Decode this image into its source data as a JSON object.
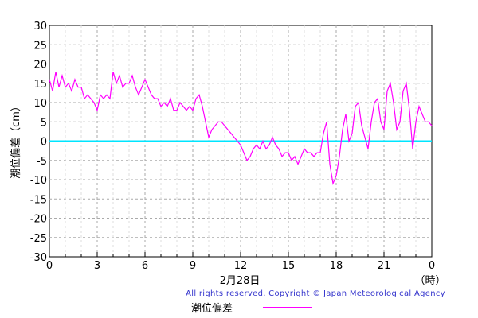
{
  "chart_data": {
    "type": "line",
    "ylabel": "潮位偏差（cm）",
    "xlabel": "2月28日",
    "x_unit_label": "（時）",
    "ylim": [
      -30,
      30
    ],
    "y_ticks": [
      30,
      25,
      20,
      15,
      10,
      5,
      0,
      -5,
      -10,
      -15,
      -20,
      -25,
      -30
    ],
    "x_ticks": [
      {
        "hour": 0,
        "label": "0"
      },
      {
        "hour": 3,
        "label": "3"
      },
      {
        "hour": 6,
        "label": "6"
      },
      {
        "hour": 9,
        "label": "9"
      },
      {
        "hour": 12,
        "label": "12"
      },
      {
        "hour": 15,
        "label": "15"
      },
      {
        "hour": 18,
        "label": "18"
      },
      {
        "hour": 21,
        "label": "21"
      },
      {
        "hour": 24,
        "label": "0"
      }
    ],
    "xlim": [
      0,
      24
    ],
    "grid": true,
    "zero_line": {
      "value": 0,
      "color": "#00e5ff"
    },
    "legend_position": "bottom-center",
    "series": [
      {
        "name": "潮位偏差",
        "color": "#ff00ff",
        "x": [
          0.0,
          0.2,
          0.4,
          0.6,
          0.8,
          1.0,
          1.2,
          1.4,
          1.6,
          1.8,
          2.0,
          2.2,
          2.4,
          2.6,
          2.8,
          3.0,
          3.2,
          3.4,
          3.6,
          3.8,
          4.0,
          4.2,
          4.4,
          4.6,
          4.8,
          5.0,
          5.2,
          5.4,
          5.6,
          5.8,
          6.0,
          6.2,
          6.4,
          6.6,
          6.8,
          7.0,
          7.2,
          7.4,
          7.6,
          7.8,
          8.0,
          8.2,
          8.4,
          8.6,
          8.8,
          9.0,
          9.2,
          9.4,
          9.6,
          9.8,
          10.0,
          10.2,
          10.4,
          10.6,
          10.8,
          11.0,
          11.2,
          11.4,
          11.6,
          11.8,
          12.0,
          12.2,
          12.4,
          12.6,
          12.8,
          13.0,
          13.2,
          13.4,
          13.6,
          13.8,
          14.0,
          14.2,
          14.4,
          14.6,
          14.8,
          15.0,
          15.2,
          15.4,
          15.6,
          15.8,
          16.0,
          16.2,
          16.4,
          16.6,
          16.8,
          17.0,
          17.2,
          17.4,
          17.6,
          17.8,
          18.0,
          18.2,
          18.4,
          18.6,
          18.8,
          19.0,
          19.2,
          19.4,
          19.6,
          19.8,
          20.0,
          20.2,
          20.4,
          20.6,
          20.8,
          21.0,
          21.2,
          21.4,
          21.6,
          21.8,
          22.0,
          22.2,
          22.4,
          22.6,
          22.8,
          23.0,
          23.2,
          23.4,
          23.6,
          23.8,
          24.0
        ],
        "values": [
          16,
          13,
          18,
          14,
          17,
          14,
          15,
          13,
          16,
          14,
          14,
          11,
          12,
          11,
          10,
          8,
          12,
          11,
          12,
          11,
          18,
          15,
          17,
          14,
          15,
          15,
          17,
          14,
          12,
          14,
          16,
          14,
          12,
          11,
          11,
          9,
          10,
          9,
          11,
          8,
          8,
          10,
          9,
          8,
          9,
          8,
          11,
          12,
          9,
          5,
          1,
          3,
          4,
          5,
          5,
          4,
          3,
          2,
          1,
          0,
          -1,
          -3,
          -5,
          -4,
          -2,
          -1,
          -2,
          0,
          -2,
          -1,
          1,
          -1,
          -2,
          -4,
          -3,
          -3,
          -5,
          -4,
          -6,
          -4,
          -2,
          -3,
          -3,
          -4,
          -3,
          -3,
          2,
          5,
          -6,
          -11,
          -9,
          -4,
          3,
          7,
          0,
          2,
          9,
          10,
          4,
          1,
          -2,
          5,
          10,
          11,
          5,
          3,
          13,
          15,
          10,
          3,
          5,
          13,
          15,
          8,
          -2,
          5,
          9,
          7,
          5,
          5,
          4
        ]
      }
    ]
  },
  "copyright": "All rights reserved. Copyright © Japan Meteorological Agency",
  "legend": {
    "label": "潮位偏差"
  }
}
